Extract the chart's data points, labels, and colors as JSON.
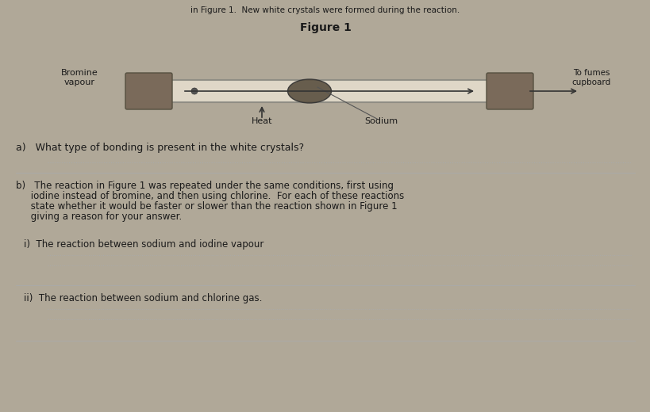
{
  "background_color": "#b0a898",
  "page_bg": "#d6cfc4",
  "title": "Figure 1",
  "top_text": "in Figure 1.  New white crystals were formed during the reaction.",
  "label_bromine": "Bromine\nvapour",
  "label_heat": "Heat",
  "label_sodium": "Sodium",
  "label_fumes": "To fumes\ncupboard",
  "question_a": "a)   What type of bonding is present in the white crystals?",
  "question_b": "b)   The reaction in Figure 1 was repeated under the same conditions, first using\n     iodine instead of bromine, and then using chlorine.  For each of these reactions\n     state whether it would be faster or slower than the reaction shown in Figure 1\n     giving a reason for your answer.",
  "question_i_label": "i)  The reaction between sodium and iodine vapour",
  "question_ii_label": "ii)  The reaction between sodium and chlorine gas.",
  "tube_color": "#c8bfb0",
  "stopper_color": "#7a6a5a",
  "sodium_color": "#5a5040",
  "arrow_color": "#333333",
  "line_color": "#999999",
  "text_color": "#1a1a1a",
  "faint_line_color": "#aaaaaa"
}
